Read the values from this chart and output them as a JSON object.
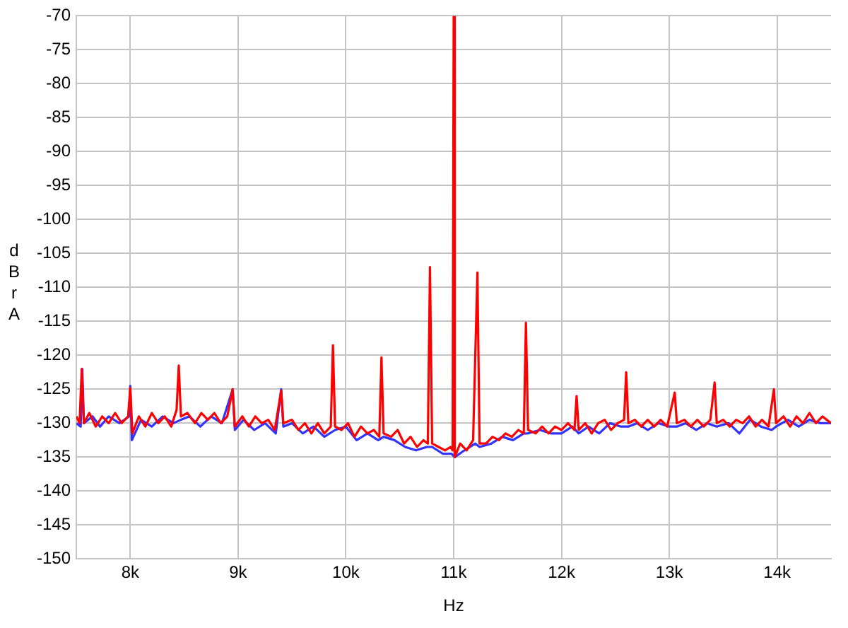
{
  "chart_data": {
    "type": "line",
    "xlabel": "Hz",
    "ylabel": "dBr A",
    "xlim": [
      7500,
      14500
    ],
    "xticks": [
      {
        "value": 8000,
        "label": "8k"
      },
      {
        "value": 9000,
        "label": "9k"
      },
      {
        "value": 10000,
        "label": "10k"
      },
      {
        "value": 11000,
        "label": "11k"
      },
      {
        "value": 12000,
        "label": "12k"
      },
      {
        "value": 13000,
        "label": "13k"
      },
      {
        "value": 14000,
        "label": "14k"
      }
    ],
    "ylim": [
      -150,
      -70
    ],
    "yticks": [
      -150,
      -145,
      -140,
      -135,
      -130,
      -125,
      -120,
      -115,
      -110,
      -105,
      -100,
      -95,
      -90,
      -85,
      -80,
      -75,
      -70
    ],
    "grid": true,
    "marker": "none",
    "line_style": "solid",
    "series": [
      {
        "color": "#3333ff",
        "x": [
          7500,
          7540,
          7555,
          7570,
          7650,
          7720,
          7800,
          7900,
          7990,
          8000,
          8015,
          8100,
          8200,
          8300,
          8400,
          8450,
          8470,
          8550,
          8650,
          8750,
          8850,
          8950,
          8970,
          9050,
          9150,
          9250,
          9350,
          9400,
          9420,
          9500,
          9600,
          9700,
          9800,
          9880,
          9900,
          10000,
          10100,
          10200,
          10300,
          10330,
          10350,
          10450,
          10550,
          10650,
          10750,
          10780,
          10800,
          10900,
          10980,
          11000,
          11010,
          11100,
          11200,
          11220,
          11240,
          11350,
          11450,
          11550,
          11650,
          11670,
          11690,
          11800,
          11900,
          12000,
          12100,
          12140,
          12160,
          12250,
          12350,
          12450,
          12550,
          12600,
          12620,
          12700,
          12800,
          12900,
          13000,
          13050,
          13070,
          13150,
          13250,
          13350,
          13420,
          13440,
          13550,
          13650,
          13750,
          13850,
          13950,
          13970,
          13990,
          14100,
          14200,
          14300,
          14400,
          14500
        ],
        "values": [
          -130,
          -130.5,
          -122,
          -130,
          -129,
          -130.5,
          -129,
          -130,
          -129,
          -124.5,
          -132.5,
          -129.5,
          -130.5,
          -129,
          -130,
          null,
          -129.5,
          -129,
          -130.5,
          -129,
          -130,
          -125,
          -131,
          -129.5,
          -131,
          -130,
          -131.5,
          -125,
          -130.5,
          -130,
          -131.5,
          -130.5,
          -132,
          null,
          -131,
          -130.5,
          -132.5,
          -131.5,
          -132.5,
          null,
          -132,
          -132.5,
          -133.5,
          -134,
          -133.5,
          null,
          -133.5,
          -134.5,
          -134.5,
          null,
          -135,
          -134,
          -133,
          null,
          -133.5,
          -133,
          -132,
          -132.5,
          -131.5,
          null,
          -131.5,
          -131,
          -131.5,
          -131.5,
          -130.5,
          null,
          -131.5,
          -130.5,
          -131.5,
          -130,
          -130.5,
          null,
          -130.5,
          -130,
          -131,
          -130,
          -130.5,
          null,
          -130.5,
          -130,
          -131,
          -130,
          null,
          -130.5,
          -130,
          -131.5,
          -129.5,
          -130.5,
          -131,
          null,
          -130.5,
          -129.5,
          -130.5,
          -129.5,
          -130,
          -130
        ]
      },
      {
        "color": "#ff0000",
        "x": [
          7500,
          7530,
          7550,
          7570,
          7620,
          7680,
          7740,
          7800,
          7860,
          7920,
          7980,
          8000,
          8020,
          8080,
          8140,
          8200,
          8260,
          8320,
          8380,
          8430,
          8450,
          8470,
          8530,
          8600,
          8660,
          8720,
          8780,
          8840,
          8900,
          8950,
          8970,
          9040,
          9100,
          9160,
          9220,
          9280,
          9340,
          9400,
          9420,
          9500,
          9560,
          9620,
          9680,
          9740,
          9800,
          9860,
          9880,
          9900,
          9960,
          10020,
          10080,
          10140,
          10200,
          10260,
          10310,
          10330,
          10350,
          10420,
          10480,
          10540,
          10600,
          10660,
          10720,
          10760,
          10780,
          10800,
          10860,
          10920,
          10970,
          10990,
          11000,
          11010,
          11060,
          11120,
          11180,
          11220,
          11240,
          11300,
          11360,
          11420,
          11480,
          11540,
          11600,
          11650,
          11670,
          11690,
          11760,
          11820,
          11880,
          11940,
          12000,
          12060,
          12120,
          12140,
          12160,
          12220,
          12280,
          12340,
          12400,
          12460,
          12520,
          12580,
          12600,
          12620,
          12680,
          12740,
          12800,
          12860,
          12920,
          12980,
          13050,
          13070,
          13140,
          13200,
          13260,
          13320,
          13380,
          13420,
          13440,
          13500,
          13560,
          13620,
          13680,
          13740,
          13800,
          13860,
          13920,
          13970,
          13990,
          14060,
          14120,
          14180,
          14240,
          14300,
          14360,
          14420,
          14500
        ],
        "values": [
          -129,
          -130,
          -122,
          -130,
          -128.5,
          -130.5,
          -129,
          -130,
          -128.5,
          -130,
          -129,
          -124.8,
          -131.5,
          -129,
          -130.5,
          -128.5,
          -130,
          -129,
          -130.5,
          -128,
          -121.5,
          -129,
          -128.5,
          -130,
          -128.5,
          -129.5,
          -128.5,
          -130,
          -129,
          -125,
          -130.5,
          -129,
          -130.5,
          -129,
          -130,
          -129.5,
          -131,
          -125.2,
          -130,
          -129.5,
          -131,
          -130,
          -131.5,
          -130,
          -131.5,
          -130.5,
          -118.5,
          -130.5,
          -131,
          -130,
          -132,
          -130.5,
          -131.5,
          -131,
          -132,
          -120.3,
          -131.5,
          -132,
          -131,
          -133,
          -132,
          -133.5,
          -132.5,
          -133,
          -107,
          -133,
          -133.5,
          -134,
          -133.5,
          -134,
          -70,
          -135,
          -133,
          -134,
          -132.5,
          -107.8,
          -133,
          -133,
          -132,
          -132.5,
          -131.5,
          -132,
          -131,
          -131.5,
          -115.2,
          -131,
          -131.5,
          -130.5,
          -131.5,
          -130.5,
          -131,
          -130,
          -131,
          -126,
          -131,
          -130,
          -131.5,
          -130,
          -129.5,
          -131,
          -130,
          -129.5,
          -122.5,
          -130,
          -129.5,
          -130.5,
          -129.5,
          -130.5,
          -129.5,
          -130.5,
          -125.5,
          -130,
          -129.5,
          -130.5,
          -129.5,
          -130.5,
          -129.5,
          -124,
          -130,
          -129.5,
          -130.5,
          -129.5,
          -130,
          -129,
          -130.5,
          -129.5,
          -130.5,
          -125,
          -130,
          -129,
          -130.5,
          -129,
          -130,
          -128.5,
          -130,
          -129,
          -130
        ]
      }
    ]
  }
}
